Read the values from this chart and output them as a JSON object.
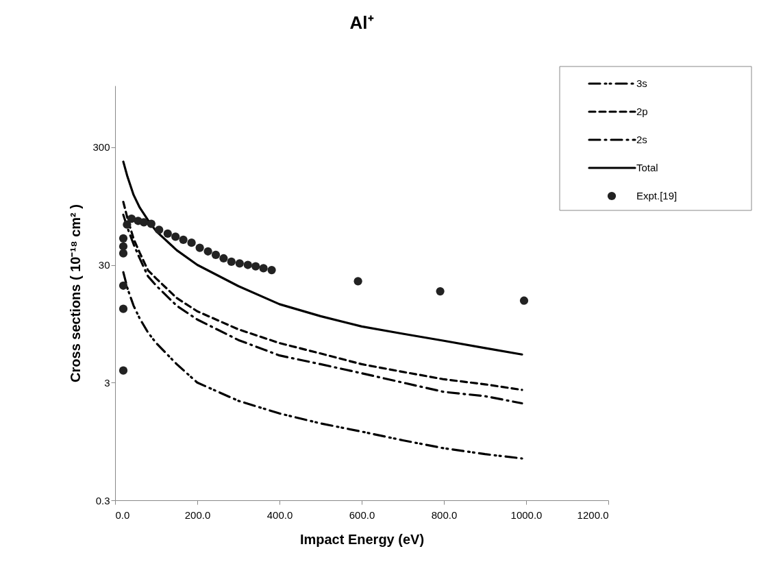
{
  "chart_data": {
    "type": "line",
    "title": "Al⁺",
    "xlabel": "Impact Energy (eV)",
    "ylabel": "Cross sections ( 10⁻¹⁸ cm² )",
    "log": "y",
    "grid": false,
    "legend": "top right",
    "xlim": [
      0,
      1200
    ],
    "ylim": [
      0.3,
      1000
    ],
    "xticks": [
      {
        "value": 0,
        "label": "0.0"
      },
      {
        "value": 200,
        "label": "200.0"
      },
      {
        "value": 400,
        "label": "400.0"
      },
      {
        "value": 600,
        "label": "600.0"
      },
      {
        "value": 800,
        "label": "800.0"
      },
      {
        "value": 1000,
        "label": "1000.0"
      },
      {
        "value": 1200,
        "label": "1200.0"
      }
    ],
    "yticks": [
      0.3,
      3,
      30,
      300
    ],
    "series": [
      {
        "name": "3s",
        "color": "#000000",
        "line_style": "dashdotdot",
        "x": [
          20,
          30,
          45,
          60,
          80,
          100,
          150,
          200,
          300,
          400,
          500,
          600,
          700,
          800,
          900,
          990
        ],
        "values": [
          26,
          19,
          13.5,
          10.5,
          8,
          6.5,
          4.3,
          3.0,
          2.1,
          1.64,
          1.35,
          1.15,
          0.97,
          0.83,
          0.74,
          0.68
        ]
      },
      {
        "name": "2p",
        "color": "#000000",
        "line_style": "dashed",
        "x": [
          20,
          30,
          45,
          60,
          80,
          100,
          150,
          200,
          300,
          400,
          500,
          600,
          700,
          800,
          900,
          990
        ],
        "values": [
          103,
          75,
          50,
          38,
          27,
          23,
          15.7,
          12.1,
          8.5,
          6.5,
          5.3,
          4.3,
          3.7,
          3.2,
          2.9,
          2.6
        ]
      },
      {
        "name": "2s",
        "color": "#000000",
        "line_style": "dashdot",
        "x": [
          20,
          30,
          45,
          60,
          80,
          100,
          150,
          200,
          300,
          400,
          500,
          600,
          700,
          800,
          900,
          990
        ],
        "values": [
          80,
          62,
          45,
          34,
          24,
          20,
          13.5,
          10.3,
          6.9,
          5.1,
          4.3,
          3.6,
          3.0,
          2.5,
          2.3,
          2.0
        ]
      },
      {
        "name": "Total",
        "color": "#000000",
        "line_style": "solid",
        "x": [
          20,
          30,
          45,
          60,
          80,
          100,
          150,
          200,
          300,
          400,
          500,
          600,
          700,
          800,
          900,
          990
        ],
        "values": [
          226,
          169,
          118,
          92,
          72,
          58,
          40,
          30,
          19.8,
          13.9,
          11,
          9.0,
          7.8,
          6.8,
          5.9,
          5.2
        ]
      },
      {
        "name": "Expt.[19]",
        "type": "scatter",
        "color": "#222222",
        "marker": "circle",
        "x": [
          20,
          20,
          20,
          20,
          20,
          20,
          29,
          40,
          56,
          70,
          88,
          107,
          128,
          147,
          166,
          186,
          206,
          226,
          245,
          264,
          283,
          303,
          323,
          342,
          361,
          381,
          591,
          791,
          995
        ],
        "values": [
          3.8,
          12.7,
          20,
          37.6,
          43.1,
          50.4,
          66,
          74,
          71,
          69,
          67,
          59.6,
          55.3,
          52.1,
          49.0,
          46.3,
          41.9,
          39.1,
          36.5,
          34.1,
          31.9,
          30.9,
          30.0,
          29.2,
          28.1,
          27.1,
          21.8,
          17.9,
          14.9
        ]
      }
    ]
  }
}
